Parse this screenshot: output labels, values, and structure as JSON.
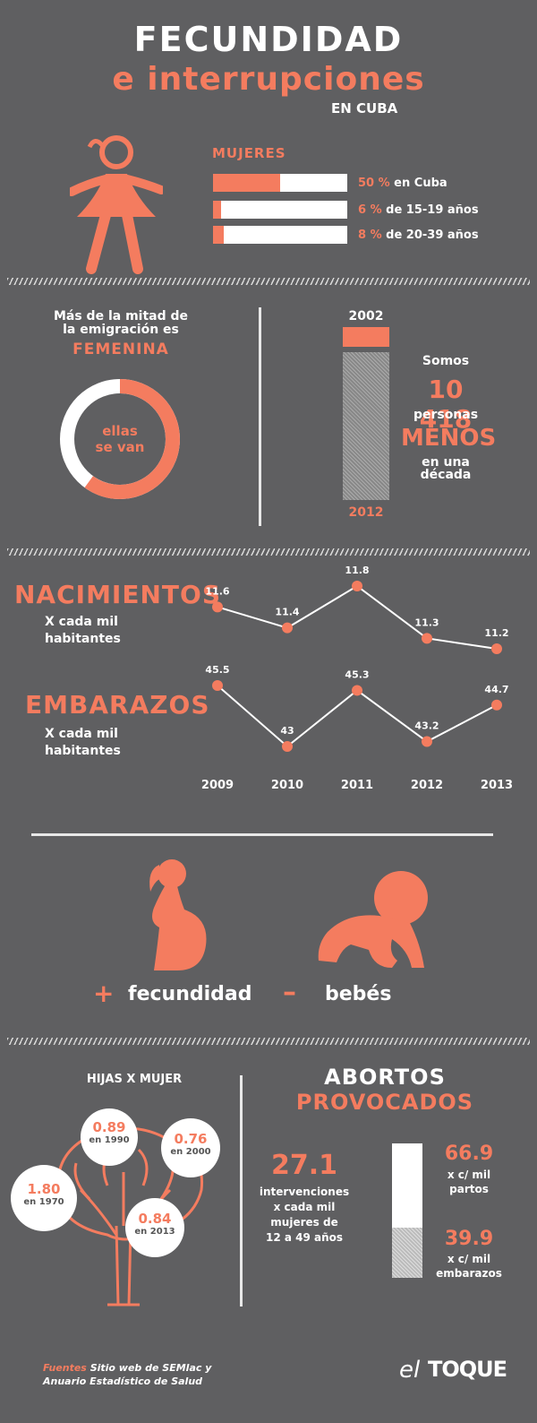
{
  "header": {
    "title_line1": "FECUNDIDAD",
    "title_line2": "e interrupciones",
    "title_line3": "EN CUBA"
  },
  "women": {
    "label": "MUJERES",
    "bars": [
      {
        "pct_text": "50 %",
        "rest": " en Cuba",
        "value": 50
      },
      {
        "pct_text": "6 %",
        "rest": " de 15-19 años",
        "value": 6
      },
      {
        "pct_text": "8 %",
        "rest": " de 20-39 años",
        "value": 8
      }
    ]
  },
  "emigration": {
    "line1": "Más de la mitad de",
    "line2": "la emigración es",
    "highlight": "FEMENINA",
    "donut_line1": "ellas",
    "donut_line2": "se van",
    "donut_fraction": 0.6
  },
  "population": {
    "year_top": "2002",
    "year_bottom": "2012",
    "somos": "Somos",
    "number": "10 418",
    "personas": "personas",
    "menos": "MENOS",
    "en_una": "en una",
    "decada": "década"
  },
  "chart_data": [
    {
      "type": "line",
      "title": "NACIMIENTOS",
      "subtitle": "X cada mil habitantes",
      "x": [
        "2009",
        "2010",
        "2011",
        "2012",
        "2013"
      ],
      "values": [
        11.6,
        11.4,
        11.8,
        11.3,
        11.2
      ],
      "labels": [
        "11.6",
        "11.4",
        "11.8",
        "11.3",
        "11.2"
      ]
    },
    {
      "type": "line",
      "title": "EMBARAZOS",
      "subtitle": "X cada mil habitantes",
      "x": [
        "2009",
        "2010",
        "2011",
        "2012",
        "2013"
      ],
      "values": [
        45.5,
        43,
        45.3,
        43.2,
        44.7
      ],
      "labels": [
        "45.5",
        "43",
        "45.3",
        "43.2",
        "44.7"
      ]
    }
  ],
  "charts_text": {
    "nac_title": "NACIMIENTOS",
    "nac_sub1": "X cada mil",
    "nac_sub2": "habitantes",
    "emb_title": "EMBARAZOS",
    "emb_sub1": "X cada mil",
    "emb_sub2": "habitantes",
    "years": [
      "2009",
      "2010",
      "2011",
      "2012",
      "2013"
    ]
  },
  "icons_section": {
    "plus": "+",
    "fecundidad": "fecundidad",
    "minus": "–",
    "bebes": "bebés"
  },
  "daughters": {
    "title": "HIJAS X MUJER",
    "items": [
      {
        "value": "0.89",
        "year": "en 1990"
      },
      {
        "value": "0.76",
        "year": "en 2000"
      },
      {
        "value": "1.80",
        "year": "en 1970"
      },
      {
        "value": "0.84",
        "year": "en 2013"
      }
    ]
  },
  "abortions": {
    "title1": "ABORTOS",
    "title2": "PROVOCADOS",
    "big": "27.1",
    "desc": [
      "intervenciones",
      "x cada mil",
      "mujeres de",
      "12 a 49 años"
    ],
    "v1": "66.9",
    "v1_l1": "x c/ mil",
    "v1_l2": "partos",
    "v2": "39.9",
    "v2_l1": "x c/ mil",
    "v2_l2": "embarazos"
  },
  "footer": {
    "src_label": "Fuentes",
    "src_line1": " Sitio web de SEMlac y",
    "src_line2": "Anuario Estadístico de Salud",
    "brand_el": "el",
    "brand_toque": "TOQUE"
  },
  "colors": {
    "accent": "#f47c5f",
    "background": "#5f5f61"
  }
}
